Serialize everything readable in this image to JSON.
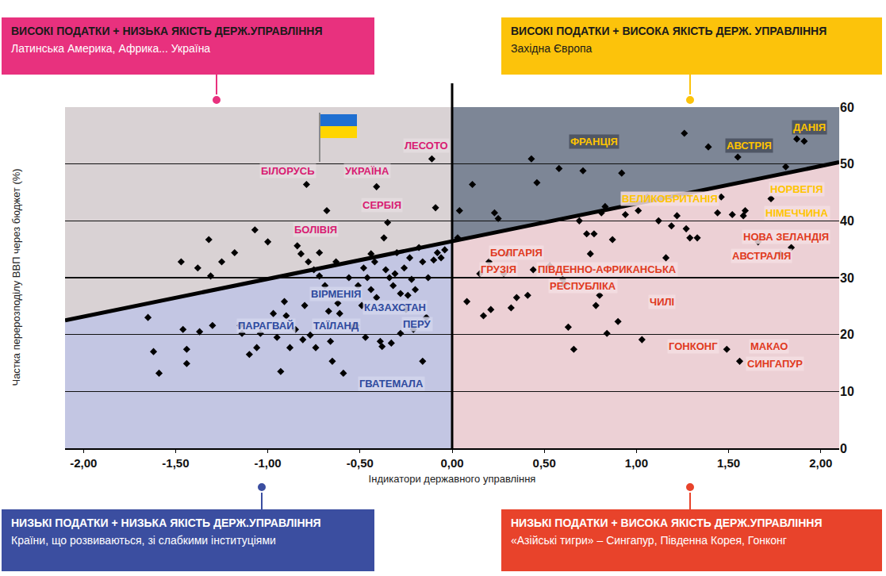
{
  "chart_data": {
    "type": "scatter",
    "x_label": "Індикатори державного управління",
    "y_label": "Частка перерозподілу ВВП через бюджет (%)",
    "xlim": [
      -2.1,
      2.1
    ],
    "xticks": [
      {
        "value": -2,
        "label": "-2,00"
      },
      {
        "value": -1.5,
        "label": "-1,50"
      },
      {
        "value": -1,
        "label": "-1,00"
      },
      {
        "value": -0.5,
        "label": "-0,50"
      },
      {
        "value": 0,
        "label": "0,00"
      },
      {
        "value": 0.5,
        "label": "0,50"
      },
      {
        "value": 1,
        "label": "1,00"
      },
      {
        "value": 1.5,
        "label": "1,50"
      },
      {
        "value": 2,
        "label": "2,00"
      }
    ],
    "ylim": [
      0,
      60
    ],
    "yticks": [
      0,
      10,
      20,
      30,
      40,
      50,
      60
    ],
    "grid": true,
    "marker": "diamond",
    "color": "#000000",
    "x": [
      -1.65,
      -1.62,
      -1.59,
      -1.47,
      -1.46,
      -1.44,
      -1.44,
      -1.38,
      -1.37,
      -1.32,
      -1.31,
      -1.3,
      -1.25,
      -1.18,
      -1.15,
      -1.14,
      -1.1,
      -1.07,
      -1.06,
      -1.04,
      -1.0,
      -0.97,
      -0.95,
      -0.93,
      -0.91,
      -0.9,
      -0.88,
      -0.85,
      -0.84,
      -0.82,
      -0.81,
      -0.8,
      -0.79,
      -0.78,
      -0.77,
      -0.75,
      -0.74,
      -0.72,
      -0.72,
      -0.69,
      -0.68,
      -0.67,
      -0.66,
      -0.65,
      -0.63,
      -0.62,
      -0.61,
      -0.59,
      -0.56,
      -0.54,
      -0.52,
      -0.51,
      -0.49,
      -0.48,
      -0.47,
      -0.46,
      -0.44,
      -0.44,
      -0.42,
      -0.41,
      -0.41,
      -0.39,
      -0.38,
      -0.37,
      -0.36,
      -0.35,
      -0.34,
      -0.33,
      -0.32,
      -0.31,
      -0.3,
      -0.28,
      -0.28,
      -0.26,
      -0.25,
      -0.24,
      -0.23,
      -0.22,
      -0.21,
      -0.2,
      -0.18,
      -0.16,
      -0.16,
      -0.14,
      -0.13,
      -0.11,
      -0.1,
      -0.09,
      -0.08,
      -0.06,
      -0.04,
      0.03,
      0.04,
      0.08,
      0.11,
      0.15,
      0.17,
      0.2,
      0.21,
      0.23,
      0.25,
      0.28,
      0.3,
      0.32,
      0.35,
      0.41,
      0.43,
      0.44,
      0.46,
      0.53,
      0.58,
      0.6,
      0.61,
      0.63,
      0.66,
      0.69,
      0.71,
      0.73,
      0.75,
      0.77,
      0.78,
      0.8,
      0.81,
      0.83,
      0.84,
      0.87,
      0.9,
      0.92,
      0.94,
      1.01,
      1.03,
      1.06,
      1.12,
      1.16,
      1.19,
      1.22,
      1.26,
      1.27,
      1.29,
      1.33,
      1.39,
      1.44,
      1.46,
      1.49,
      1.52,
      1.55,
      1.56,
      1.58,
      1.59,
      1.66,
      1.73,
      1.78,
      1.81,
      1.84,
      1.87,
      1.91
    ],
    "y": [
      23.0,
      17.0,
      13.2,
      32.8,
      20.9,
      17.4,
      14.9,
      31.7,
      20.5,
      36.7,
      30.3,
      21.6,
      32.8,
      34.4,
      21.6,
      20.2,
      16.5,
      38.4,
      17.7,
      20.2,
      36.3,
      23.7,
      19.5,
      13.5,
      25.8,
      23.3,
      17.7,
      20.9,
      35.6,
      34.2,
      19.1,
      25.1,
      46.4,
      32.8,
      19.9,
      31.4,
      17.7,
      34.4,
      30.3,
      28.6,
      41.8,
      24.1,
      18.8,
      15.3,
      32.8,
      25.5,
      23.7,
      13.2,
      30.0,
      21.3,
      21.6,
      28.6,
      25.1,
      31.7,
      19.5,
      30.0,
      27.9,
      34.2,
      32.8,
      46.0,
      26.5,
      18.8,
      17.9,
      37.0,
      31.4,
      39.7,
      30.0,
      18.5,
      28.6,
      30.7,
      34.4,
      20.2,
      27.2,
      31.7,
      24.4,
      26.9,
      33.5,
      29.7,
      20.9,
      27.9,
      35.3,
      15.3,
      32.8,
      23.0,
      30.0,
      50.9,
      33.1,
      42.3,
      34.4,
      33.5,
      34.9,
      37.0,
      41.8,
      25.8,
      46.4,
      30.7,
      23.3,
      32.8,
      24.4,
      41.4,
      40.4,
      30.7,
      34.2,
      24.7,
      26.5,
      26.9,
      50.9,
      31.4,
      46.7,
      32.1,
      49.2,
      29.7,
      28.9,
      21.3,
      17.4,
      40.0,
      48.8,
      37.7,
      34.2,
      37.7,
      25.1,
      26.9,
      41.4,
      42.5,
      20.2,
      36.7,
      22.3,
      48.4,
      41.1,
      41.8,
      19.1,
      44.2,
      40.0,
      33.5,
      39.1,
      40.9,
      55.4,
      38.6,
      37.0,
      37.0,
      53.0,
      41.4,
      44.2,
      17.4,
      41.1,
      51.2,
      15.3,
      40.9,
      41.8,
      36.3,
      43.9,
      34.2,
      49.5,
      35.3,
      54.4,
      54.0
    ],
    "trend_line": {
      "x": [
        -2.1,
        2.1
      ],
      "y": [
        22.5,
        50.3
      ],
      "color": "#000000",
      "line_style": "solid"
    },
    "vline_x": 0,
    "labels": [
      {
        "text": "ЛЕСОТО",
        "x": -0.14,
        "y": 53.3,
        "color": "#d81b72"
      },
      {
        "text": "БІЛОРУСЬ",
        "x": -0.89,
        "y": 48.7,
        "color": "#d81b72"
      },
      {
        "text": "УКРАЇНА",
        "x": -0.46,
        "y": 48.7,
        "color": "#d81b72"
      },
      {
        "text": "СЕРБІЯ",
        "x": -0.38,
        "y": 42.8,
        "color": "#d81b72"
      },
      {
        "text": "БОЛІВІЯ",
        "x": -0.74,
        "y": 38.4,
        "color": "#d81b72"
      },
      {
        "text": "ВІРМЕНІЯ",
        "x": -0.63,
        "y": 27.2,
        "color": "#2e4a9e"
      },
      {
        "text": "КАЗАХСТАН",
        "x": -0.31,
        "y": 24.7,
        "color": "#2e4a9e"
      },
      {
        "text": "ПАРАГВАЙ",
        "x": -1.01,
        "y": 21.5,
        "color": "#2e4a9e"
      },
      {
        "text": "ТАЇЛАНД",
        "x": -0.63,
        "y": 21.5,
        "color": "#2e4a9e"
      },
      {
        "text": "ПЕРУ",
        "x": -0.19,
        "y": 21.9,
        "color": "#2e4a9e"
      },
      {
        "text": "ГВАТЕМАЛА",
        "x": -0.33,
        "y": 11.4,
        "color": "#2e4a9e"
      },
      {
        "text": "ФРАНЦІЯ",
        "x": 0.77,
        "y": 54.0,
        "color": "#ffc400"
      },
      {
        "text": "АВСТРІЯ",
        "x": 1.61,
        "y": 53.3,
        "color": "#ffc400"
      },
      {
        "text": "ДАНІЯ",
        "x": 1.94,
        "y": 56.5,
        "color": "#ffc400"
      },
      {
        "text": "ВЕЛИКОБРИТАНІЯ",
        "x": 1.18,
        "y": 43.9,
        "color": "#ffc400"
      },
      {
        "text": "НОРВЕГІЯ",
        "x": 1.87,
        "y": 45.6,
        "color": "#ffc400"
      },
      {
        "text": "НІМЕЧЧИНА",
        "x": 1.87,
        "y": 41.4,
        "color": "#ffc400"
      },
      {
        "text": "НОВА ЗЕЛАНДІЯ",
        "x": 1.81,
        "y": 37.2,
        "color": "#e03a1e"
      },
      {
        "text": "АВСТРАЛІЯ",
        "x": 1.68,
        "y": 33.8,
        "color": "#e03a1e"
      },
      {
        "text": "БОЛГАРІЯ",
        "x": 0.35,
        "y": 34.4,
        "color": "#e03a1e"
      },
      {
        "text": "ГРУЗІЯ",
        "x": 0.25,
        "y": 31.4,
        "color": "#e03a1e"
      },
      {
        "text": "ПІВДЕННО-АФРИКАНСЬКА",
        "x": 0.84,
        "y": 31.4,
        "color": "#e03a1e"
      },
      {
        "text": "РЕСПУБЛІКА",
        "x": 0.71,
        "y": 28.6,
        "color": "#e03a1e"
      },
      {
        "text": "ЧИЛІ",
        "x": 1.14,
        "y": 25.8,
        "color": "#e03a1e"
      },
      {
        "text": "ГОНКОНГ",
        "x": 1.31,
        "y": 17.9,
        "color": "#e03a1e"
      },
      {
        "text": "МАКАО",
        "x": 1.72,
        "y": 17.9,
        "color": "#e03a1e"
      },
      {
        "text": "СИНГАПУР",
        "x": 1.75,
        "y": 14.9,
        "color": "#e03a1e"
      }
    ],
    "quadrants": [
      {
        "title": "ВИСОКІ ПОДАТКИ + НИЗЬКА ЯКІСТЬ ДЕРЖ.УПРАВЛІННЯ",
        "subtitle": "Латинська Америка, Африка... Україна",
        "color": "#e8317e"
      },
      {
        "title": "ВИСОКІ ПОДАТКИ + ВИСОКА ЯКІСТЬ ДЕРЖ. УПРАВЛІННЯ",
        "subtitle": "Західна Європа",
        "color": "#fcc30b"
      },
      {
        "title": "НИЗЬКІ ПОДАТКИ + НИЗЬКА ЯКІСТЬ ДЕРЖ.УПРАВЛІННЯ",
        "subtitle": "Країни, що розвиваються, зі слабкими інституціями",
        "color": "#3b4ea0"
      },
      {
        "title": "НИЗЬКІ ПОДАТКИ + ВИСОКА ЯКІСТЬ ДЕРЖ.УПРАВЛІННЯ",
        "subtitle": "«Азійські тигри» – Сингапур, Південна Корея, Гонконг",
        "color": "#e8432b"
      }
    ]
  }
}
